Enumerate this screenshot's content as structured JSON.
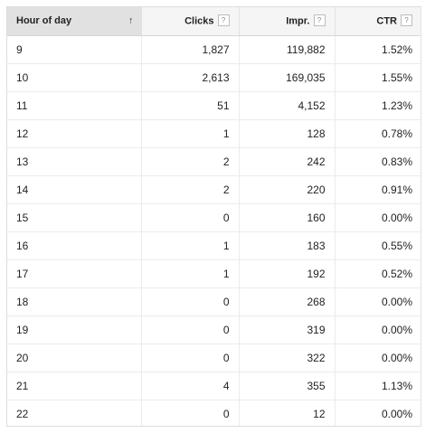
{
  "table": {
    "columns": [
      {
        "label": "Hour of day",
        "sort_icon": "arrow-up-icon",
        "sort_glyph": "↑"
      },
      {
        "label": "Clicks",
        "help": "?"
      },
      {
        "label": "Impr.",
        "help": "?"
      },
      {
        "label": "CTR",
        "help": "?"
      }
    ],
    "rows": [
      {
        "hour": "9",
        "clicks": "1,827",
        "impr": "119,882",
        "ctr": "1.52%"
      },
      {
        "hour": "10",
        "clicks": "2,613",
        "impr": "169,035",
        "ctr": "1.55%"
      },
      {
        "hour": "11",
        "clicks": "51",
        "impr": "4,152",
        "ctr": "1.23%"
      },
      {
        "hour": "12",
        "clicks": "1",
        "impr": "128",
        "ctr": "0.78%"
      },
      {
        "hour": "13",
        "clicks": "2",
        "impr": "242",
        "ctr": "0.83%"
      },
      {
        "hour": "14",
        "clicks": "2",
        "impr": "220",
        "ctr": "0.91%"
      },
      {
        "hour": "15",
        "clicks": "0",
        "impr": "160",
        "ctr": "0.00%"
      },
      {
        "hour": "16",
        "clicks": "1",
        "impr": "183",
        "ctr": "0.55%"
      },
      {
        "hour": "17",
        "clicks": "1",
        "impr": "192",
        "ctr": "0.52%"
      },
      {
        "hour": "18",
        "clicks": "0",
        "impr": "268",
        "ctr": "0.00%"
      },
      {
        "hour": "19",
        "clicks": "0",
        "impr": "319",
        "ctr": "0.00%"
      },
      {
        "hour": "20",
        "clicks": "0",
        "impr": "322",
        "ctr": "0.00%"
      },
      {
        "hour": "21",
        "clicks": "4",
        "impr": "355",
        "ctr": "1.13%"
      },
      {
        "hour": "22",
        "clicks": "0",
        "impr": "12",
        "ctr": "0.00%"
      }
    ]
  }
}
